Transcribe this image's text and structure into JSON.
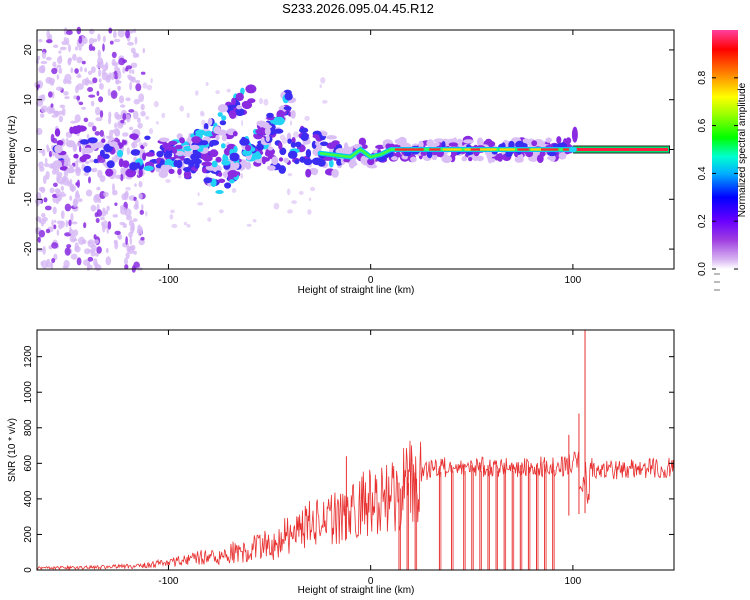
{
  "title": "S233.2026.095.04.45.R12",
  "chart_data": [
    {
      "type": "heatmap",
      "xlabel": "Height of straight line (km)",
      "ylabel": "Frequency (Hz)",
      "xlim": [
        -165,
        150
      ],
      "ylim": [
        -24,
        24
      ],
      "xticks": [
        -100,
        0,
        100
      ],
      "yticks": [
        -20,
        -10,
        0,
        10,
        20
      ],
      "colorbar": {
        "label": "Normalized spectral amplitude",
        "range": [
          0,
          1
        ],
        "ticks": [
          0.0,
          0.2,
          0.4,
          0.6,
          0.8
        ]
      },
      "features": {
        "scattered_noise_x_range": [
          -165,
          -120
        ],
        "main_ridge": [
          [
            -150,
            0
          ],
          [
            -120,
            -1
          ],
          [
            -100,
            -2
          ],
          [
            -80,
            -1
          ],
          [
            -60,
            0
          ],
          [
            -40,
            0
          ],
          [
            -20,
            -1
          ],
          [
            -10,
            -1.5
          ],
          [
            -5,
            0
          ],
          [
            0,
            -1.5
          ],
          [
            5,
            -1
          ],
          [
            10,
            0
          ],
          [
            150,
            0
          ]
        ],
        "upper_branch": [
          [
            -105,
            -2
          ],
          [
            -90,
            0
          ],
          [
            -80,
            3
          ],
          [
            -70,
            7
          ],
          [
            -60,
            11
          ]
        ],
        "lower_branch": [
          [
            -80,
            -8
          ],
          [
            -70,
            -4
          ],
          [
            -60,
            0
          ],
          [
            -50,
            4
          ],
          [
            -40,
            10
          ]
        ],
        "steady_line_from": 100
      }
    },
    {
      "type": "line",
      "xlabel": "Height of straight line (km)",
      "ylabel": "SNR (10 * v/v)",
      "xlim": [
        -165,
        150
      ],
      "ylim": [
        0,
        1350
      ],
      "xticks": [
        -100,
        0,
        100
      ],
      "yticks": [
        0,
        200,
        400,
        600,
        800,
        1000,
        1200
      ],
      "color": "#e83232",
      "envelope": [
        [
          -165,
          12
        ],
        [
          -140,
          15
        ],
        [
          -120,
          22
        ],
        [
          -100,
          40
        ],
        [
          -80,
          80
        ],
        [
          -60,
          120
        ],
        [
          -45,
          170
        ],
        [
          -30,
          280
        ],
        [
          -20,
          300
        ],
        [
          -10,
          360
        ],
        [
          0,
          420
        ],
        [
          10,
          460
        ],
        [
          20,
          540
        ],
        [
          30,
          580
        ],
        [
          40,
          590
        ],
        [
          60,
          590
        ],
        [
          80,
          590
        ],
        [
          95,
          600
        ],
        [
          100,
          620
        ],
        [
          106,
          640
        ],
        [
          110,
          575
        ],
        [
          130,
          580
        ],
        [
          150,
          590
        ]
      ],
      "dropouts": [
        14,
        18,
        22,
        34,
        40,
        46,
        50,
        54,
        58,
        62,
        66,
        70,
        74,
        78,
        82,
        86,
        90
      ],
      "spikes": [
        [
          -12,
          640
        ],
        [
          98,
          760
        ],
        [
          103,
          880
        ],
        [
          106,
          1350
        ]
      ]
    }
  ]
}
